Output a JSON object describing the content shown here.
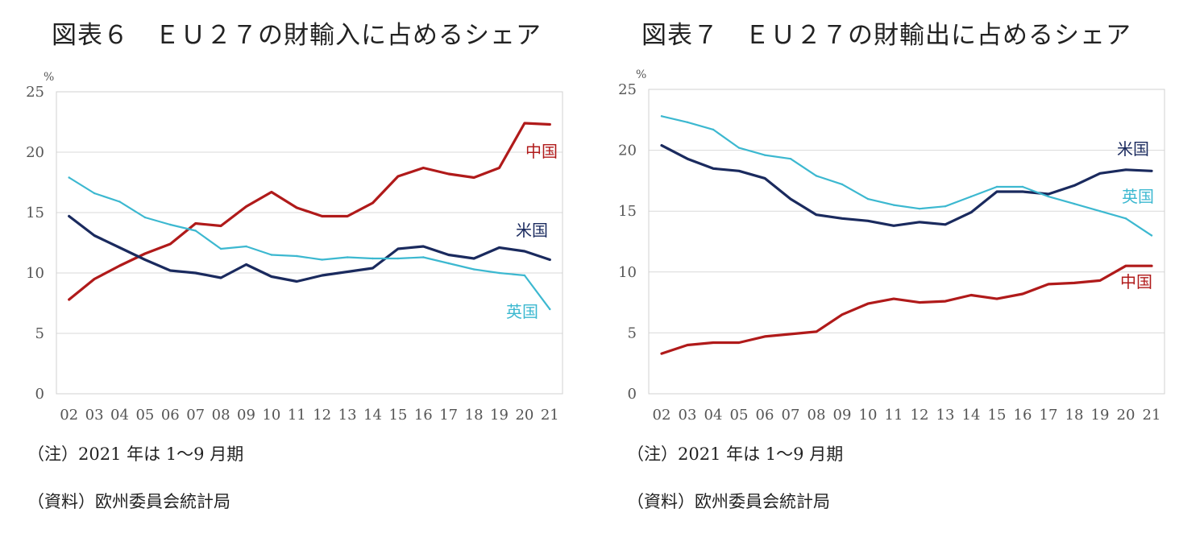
{
  "charts": [
    {
      "title": "図表６　ＥＵ２７の財輸入に占めるシェア",
      "note": "（注）2021 年は 1～9 月期",
      "source": "（資料）欧州委員会統計局"
    },
    {
      "title": "図表７　ＥＵ２７の財輸出に占めるシェア",
      "note": "（注）2021 年は 1～9 月期",
      "source": "（資料）欧州委員会統計局"
    }
  ],
  "chart_data": [
    {
      "type": "line",
      "title": "図表６　ＥＵ２７の財輸入に占めるシェア",
      "ylabel": "%",
      "ylim": [
        0,
        25
      ],
      "yticks": [
        "0",
        "5",
        "10",
        "15",
        "20",
        "25"
      ],
      "grid": true,
      "categories": [
        "02",
        "03",
        "04",
        "05",
        "06",
        "07",
        "08",
        "09",
        "10",
        "11",
        "12",
        "13",
        "14",
        "15",
        "16",
        "17",
        "18",
        "19",
        "20",
        "21"
      ],
      "series": [
        {
          "name": "中国",
          "color": "#b01a1a",
          "values": [
            7.8,
            9.5,
            10.6,
            11.6,
            12.4,
            14.1,
            13.9,
            15.5,
            16.7,
            15.4,
            14.7,
            14.7,
            15.8,
            18.0,
            18.7,
            18.2,
            17.9,
            18.7,
            22.4,
            22.3
          ]
        },
        {
          "name": "米国",
          "color": "#1a2a5e",
          "values": [
            14.7,
            13.1,
            12.1,
            11.1,
            10.2,
            10.0,
            9.6,
            10.7,
            9.7,
            9.3,
            9.8,
            10.1,
            10.4,
            12.0,
            12.2,
            11.5,
            11.2,
            12.1,
            11.8,
            11.1
          ]
        },
        {
          "name": "英国",
          "color": "#3cb8d0",
          "values": [
            17.9,
            16.6,
            15.9,
            14.6,
            14.0,
            13.5,
            12.0,
            12.2,
            11.5,
            11.4,
            11.1,
            11.3,
            11.2,
            11.2,
            11.3,
            10.8,
            10.3,
            10.0,
            9.8,
            7.0
          ]
        }
      ]
    },
    {
      "type": "line",
      "title": "図表７　ＥＵ２７の財輸出に占めるシェア",
      "ylabel": "%",
      "ylim": [
        0,
        25
      ],
      "yticks": [
        "0",
        "5",
        "10",
        "15",
        "20",
        "25"
      ],
      "grid": true,
      "categories": [
        "02",
        "03",
        "04",
        "05",
        "06",
        "07",
        "08",
        "09",
        "10",
        "11",
        "12",
        "13",
        "14",
        "15",
        "16",
        "17",
        "18",
        "19",
        "20",
        "21"
      ],
      "series": [
        {
          "name": "米国",
          "color": "#1a2a5e",
          "values": [
            20.4,
            19.3,
            18.5,
            18.3,
            17.7,
            16.0,
            14.7,
            14.4,
            14.2,
            13.8,
            14.1,
            13.9,
            14.9,
            16.6,
            16.6,
            16.4,
            17.1,
            18.1,
            18.4,
            18.3
          ]
        },
        {
          "name": "英国",
          "color": "#3cb8d0",
          "values": [
            22.8,
            22.3,
            21.7,
            20.2,
            19.6,
            19.3,
            17.9,
            17.2,
            16.0,
            15.5,
            15.2,
            15.4,
            16.2,
            17.0,
            17.0,
            16.2,
            15.6,
            15.0,
            14.4,
            13.0
          ]
        },
        {
          "name": "中国",
          "color": "#b01a1a",
          "values": [
            3.3,
            4.0,
            4.2,
            4.2,
            4.7,
            4.9,
            5.1,
            6.5,
            7.4,
            7.8,
            7.5,
            7.6,
            8.1,
            7.8,
            8.2,
            9.0,
            9.1,
            9.3,
            10.5,
            10.5
          ]
        }
      ]
    }
  ]
}
